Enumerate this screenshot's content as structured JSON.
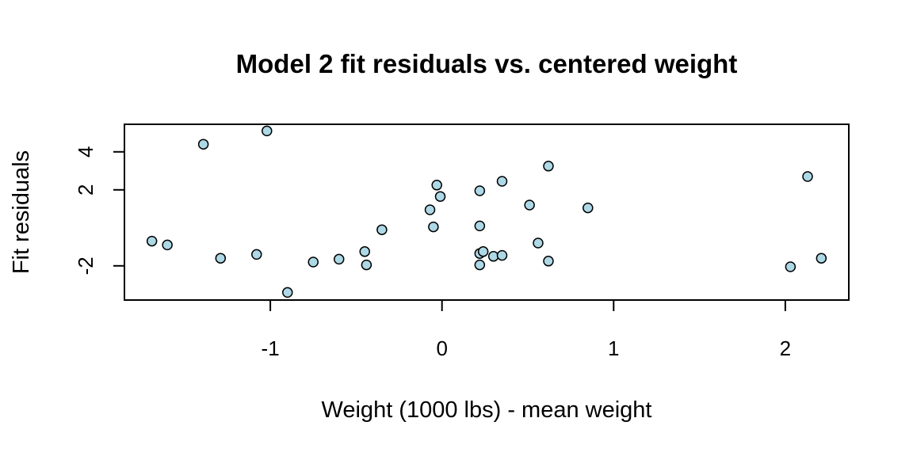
{
  "chart_data": {
    "type": "scatter",
    "title": "Model 2 fit residuals vs. centered weight",
    "xlabel": "Weight (1000 lbs) - mean weight",
    "ylabel": "Fit residuals",
    "xlim": [
      -1.85,
      2.37
    ],
    "ylim": [
      -3.8,
      5.45
    ],
    "xticks": [
      -1,
      0,
      1,
      2
    ],
    "yticks": [
      -2,
      2,
      4
    ],
    "xtick_labels": [
      "-1",
      "0",
      "1",
      "2"
    ],
    "ytick_labels": [
      "-2",
      "2",
      "4"
    ],
    "marker_fill": "#add8e6",
    "marker_edge": "#000000",
    "grid": false,
    "points": [
      {
        "x": -1.69,
        "y": -0.7
      },
      {
        "x": -1.6,
        "y": -0.9
      },
      {
        "x": -1.39,
        "y": 4.4
      },
      {
        "x": -1.29,
        "y": -1.6
      },
      {
        "x": -1.08,
        "y": -1.4
      },
      {
        "x": -1.02,
        "y": 5.1
      },
      {
        "x": -0.9,
        "y": -3.4
      },
      {
        "x": -0.75,
        "y": -1.8
      },
      {
        "x": -0.6,
        "y": -1.65
      },
      {
        "x": -0.45,
        "y": -1.25
      },
      {
        "x": -0.44,
        "y": -1.95
      },
      {
        "x": -0.35,
        "y": -0.1
      },
      {
        "x": -0.07,
        "y": 0.95
      },
      {
        "x": -0.05,
        "y": 0.05
      },
      {
        "x": -0.03,
        "y": 2.25
      },
      {
        "x": -0.01,
        "y": 1.65
      },
      {
        "x": 0.22,
        "y": 1.95
      },
      {
        "x": 0.22,
        "y": 0.1
      },
      {
        "x": 0.22,
        "y": -1.35
      },
      {
        "x": 0.22,
        "y": -1.95
      },
      {
        "x": 0.24,
        "y": -1.25
      },
      {
        "x": 0.3,
        "y": -1.5
      },
      {
        "x": 0.35,
        "y": -1.45
      },
      {
        "x": 0.35,
        "y": 2.45
      },
      {
        "x": 0.51,
        "y": 1.2
      },
      {
        "x": 0.56,
        "y": -0.8
      },
      {
        "x": 0.62,
        "y": 3.25
      },
      {
        "x": 0.62,
        "y": -1.75
      },
      {
        "x": 0.85,
        "y": 1.05
      },
      {
        "x": 2.03,
        "y": -2.05
      },
      {
        "x": 2.13,
        "y": 2.7
      },
      {
        "x": 2.21,
        "y": -1.6
      }
    ]
  }
}
